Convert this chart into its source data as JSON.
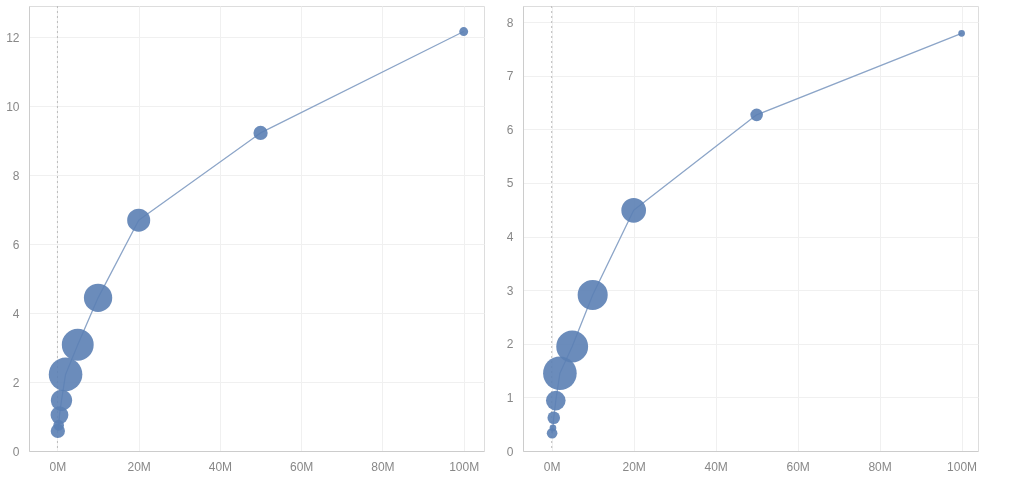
{
  "chart_data": [
    {
      "type": "bubble",
      "x": [
        0.1,
        0.3,
        0.5,
        1,
        2,
        5,
        10,
        20,
        50,
        100
      ],
      "series": [
        {
          "type": "line",
          "color": "#8ca5c8",
          "line_style": "solid",
          "values": [
            0.58,
            0.75,
            1.04,
            1.47,
            2.22,
            3.08,
            4.44,
            6.69,
            9.22,
            12.16
          ]
        },
        {
          "color": "#5b7fb4",
          "values": [
            0.58,
            0.75,
            1.04,
            1.47,
            2.22,
            3.08,
            4.44,
            6.69,
            9.22,
            12.16
          ],
          "sizes": [
            0.18,
            0.1,
            0.28,
            0.4,
            1,
            0.9,
            0.71,
            0.47,
            0.18,
            0.07
          ]
        }
      ],
      "xlim": [
        -7,
        105
      ],
      "xticks": [
        {
          "value": 0,
          "label": "0M"
        },
        {
          "value": 20,
          "label": "20M"
        },
        {
          "value": 40,
          "label": "40M"
        },
        {
          "value": 60,
          "label": "60M"
        },
        {
          "value": 80,
          "label": "80M"
        },
        {
          "value": 100,
          "label": "100M"
        }
      ],
      "ylim": [
        0,
        12.9
      ],
      "yticks": [
        0,
        2,
        4,
        6,
        8,
        10,
        12
      ],
      "grid": true,
      "ref_lines": [
        {
          "axis": "x",
          "value": 0,
          "line_style": "dotted"
        }
      ]
    },
    {
      "type": "bubble",
      "x": [
        0.1,
        0.3,
        0.5,
        1,
        2,
        5,
        10,
        20,
        50,
        100
      ],
      "series": [
        {
          "type": "line",
          "color": "#8ca5c8",
          "line_style": "solid",
          "values": [
            0.33,
            0.43,
            0.62,
            0.94,
            1.45,
            1.95,
            2.91,
            4.49,
            6.27,
            7.79
          ]
        },
        {
          "color": "#5b7fb4",
          "values": [
            0.33,
            0.43,
            0.62,
            0.94,
            1.45,
            1.95,
            2.91,
            4.49,
            6.27,
            7.79
          ],
          "sizes": [
            0.1,
            0.04,
            0.14,
            0.34,
            1,
            0.9,
            0.8,
            0.54,
            0.14,
            0.04
          ]
        }
      ],
      "xlim": [
        -7,
        104
      ],
      "xticks": [
        {
          "value": 0,
          "label": "0M"
        },
        {
          "value": 20,
          "label": "20M"
        },
        {
          "value": 40,
          "label": "40M"
        },
        {
          "value": 60,
          "label": "60M"
        },
        {
          "value": 80,
          "label": "80M"
        },
        {
          "value": 100,
          "label": "100M"
        }
      ],
      "ylim": [
        0,
        8.3
      ],
      "yticks": [
        0,
        1,
        2,
        3,
        4,
        5,
        6,
        7,
        8
      ],
      "grid": true,
      "ref_lines": [
        {
          "axis": "x",
          "value": 0,
          "line_style": "dotted"
        }
      ]
    }
  ]
}
